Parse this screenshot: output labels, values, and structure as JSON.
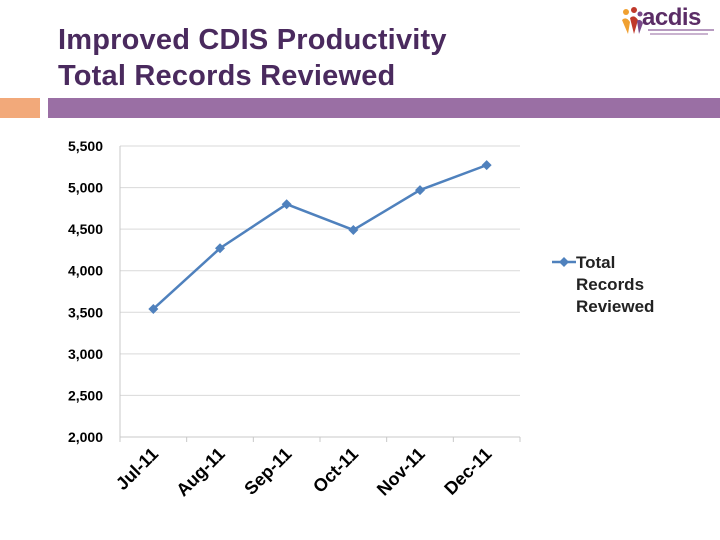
{
  "slide": {
    "title_line1": "Improved CDIS Productivity",
    "title_line2": "Total Records Reviewed",
    "logo_text": "acdis"
  },
  "colors": {
    "title": "#4a2a5e",
    "accent_bar": "#f2a97a",
    "main_bar": "#9a6fa4",
    "series_line": "#4f81bd",
    "gridline": "#d9d9d9"
  },
  "chart_data": {
    "type": "line",
    "categories": [
      "Jul-11",
      "Aug-11",
      "Sep-11",
      "Oct-11",
      "Nov-11",
      "Dec-11"
    ],
    "series": [
      {
        "name": "Total Records Reviewed",
        "values": [
          3540,
          4270,
          4800,
          4490,
          4970,
          5270
        ]
      }
    ],
    "y_ticks": [
      "2,000",
      "2,500",
      "3,000",
      "3,500",
      "4,000",
      "4,500",
      "5,000",
      "5,500"
    ],
    "y_tick_values": [
      2000,
      2500,
      3000,
      3500,
      4000,
      4500,
      5000,
      5500
    ],
    "ylim": [
      2000,
      5500
    ],
    "grid": true,
    "legend_position": "right",
    "marker": "diamond"
  }
}
